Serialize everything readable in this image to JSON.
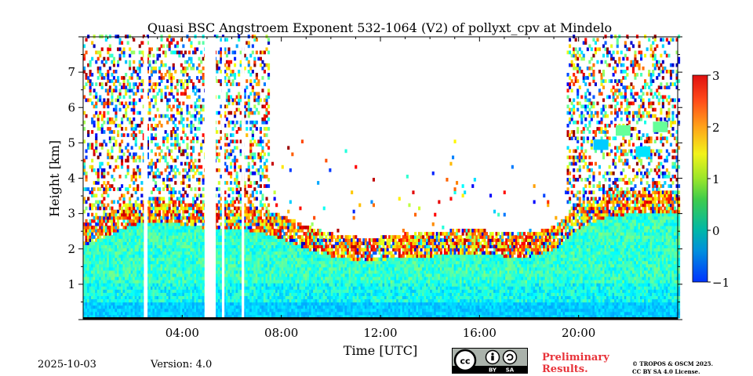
{
  "chart_data": {
    "type": "heatmap",
    "title": "Quasi BSC Angstroem Exponent 532-1064 (V2) of pollyxt_cpv at Mindelo",
    "xlabel": "Time [UTC]",
    "ylabel": "Height [km]",
    "xlim": [
      0,
      24
    ],
    "ylim": [
      0,
      8
    ],
    "x_ticks": [
      {
        "value": 4,
        "label": "04:00"
      },
      {
        "value": 8,
        "label": "08:00"
      },
      {
        "value": 12,
        "label": "12:00"
      },
      {
        "value": 16,
        "label": "16:00"
      },
      {
        "value": 20,
        "label": "20:00"
      }
    ],
    "y_ticks": [
      {
        "value": 1,
        "label": "1"
      },
      {
        "value": 2,
        "label": "2"
      },
      {
        "value": 3,
        "label": "3"
      },
      {
        "value": 4,
        "label": "4"
      },
      {
        "value": 5,
        "label": "5"
      },
      {
        "value": 6,
        "label": "6"
      },
      {
        "value": 7,
        "label": "7"
      }
    ],
    "colorbar": {
      "range": [
        -1,
        3
      ],
      "ticks": [
        {
          "value": -1,
          "label": "−1"
        },
        {
          "value": 0,
          "label": "0"
        },
        {
          "value": 1,
          "label": "1"
        },
        {
          "value": 2,
          "label": "2"
        },
        {
          "value": 3,
          "label": "3"
        }
      ],
      "colormap": "jet"
    },
    "layer_top_km": [
      {
        "time": 0.0,
        "height": 2.4
      },
      {
        "time": 1.0,
        "height": 2.7
      },
      {
        "time": 2.0,
        "height": 3.0
      },
      {
        "time": 3.0,
        "height": 3.1
      },
      {
        "time": 4.0,
        "height": 3.0
      },
      {
        "time": 5.0,
        "height": 2.9
      },
      {
        "time": 6.0,
        "height": 2.9
      },
      {
        "time": 7.0,
        "height": 2.8
      },
      {
        "time": 8.0,
        "height": 2.6
      },
      {
        "time": 9.0,
        "height": 2.3
      },
      {
        "time": 10.0,
        "height": 2.1
      },
      {
        "time": 11.0,
        "height": 2.0
      },
      {
        "time": 12.0,
        "height": 2.0
      },
      {
        "time": 13.0,
        "height": 2.1
      },
      {
        "time": 14.0,
        "height": 2.1
      },
      {
        "time": 15.0,
        "height": 2.2
      },
      {
        "time": 16.0,
        "height": 2.2
      },
      {
        "time": 17.0,
        "height": 2.1
      },
      {
        "time": 18.0,
        "height": 2.1
      },
      {
        "time": 19.0,
        "height": 2.3
      },
      {
        "time": 20.0,
        "height": 2.9
      },
      {
        "time": 21.0,
        "height": 3.2
      },
      {
        "time": 22.0,
        "height": 3.3
      },
      {
        "time": 23.0,
        "height": 3.3
      },
      {
        "time": 24.0,
        "height": 3.3
      }
    ],
    "data_gaps_utc": [
      [
        2.45,
        2.6
      ],
      [
        4.9,
        5.35
      ],
      [
        5.6,
        5.7
      ],
      [
        6.4,
        6.5
      ]
    ],
    "dominant_value_boundary_layer": 0.7
  },
  "footer": {
    "date": "2025-10-03",
    "version": "Version: 4.0",
    "preliminary_line1": "Preliminary",
    "preliminary_line2": "Results.",
    "copyright_line1": "© TROPOS & OSCM 2025.",
    "copyright_line2": "CC BY SA 4.0 License.",
    "license_badge_labels": [
      "cc",
      "BY",
      "SA"
    ]
  },
  "colors": {
    "preliminary": "#e8333a",
    "badge_bg": "#aab2ab"
  }
}
